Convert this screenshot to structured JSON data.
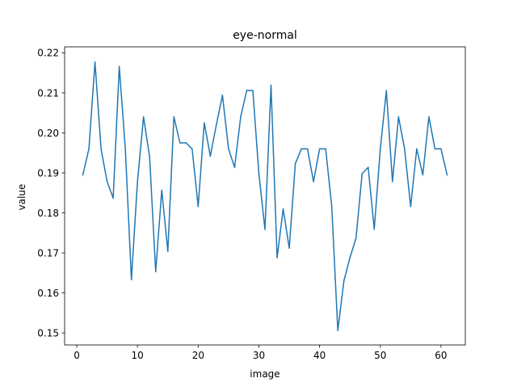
{
  "chart_data": {
    "type": "line",
    "title": "eye-normal",
    "xlabel": "image",
    "ylabel": "value",
    "xlim": [
      -2,
      64
    ],
    "ylim": [
      0.147,
      0.2215
    ],
    "xticks": [
      0,
      10,
      20,
      30,
      40,
      50,
      60
    ],
    "xtick_labels": [
      "0",
      "10",
      "20",
      "30",
      "40",
      "50",
      "60"
    ],
    "yticks": [
      0.15,
      0.16,
      0.17,
      0.18,
      0.19,
      0.2,
      0.21,
      0.22
    ],
    "ytick_labels": [
      "0.15",
      "0.16",
      "0.17",
      "0.18",
      "0.19",
      "0.20",
      "0.21",
      "0.22"
    ],
    "grid": false,
    "line_color": "#1f77b4",
    "series": [
      {
        "x": [
          1,
          2,
          3,
          4,
          5,
          6,
          7,
          8,
          9,
          10,
          11,
          12,
          13,
          14,
          15,
          16,
          17,
          18,
          19,
          20,
          21,
          22,
          23,
          24,
          25,
          26,
          27,
          28,
          29,
          30,
          31,
          32,
          33,
          34,
          35,
          36,
          37,
          38,
          39,
          40,
          41,
          42,
          43,
          44,
          45,
          46,
          47,
          48,
          49,
          50,
          51,
          52,
          53,
          54,
          55,
          56,
          57,
          58,
          59,
          60,
          61
        ],
        "values": [
          0.1895,
          0.196,
          0.2177,
          0.196,
          0.1878,
          0.1837,
          0.2166,
          0.196,
          0.1633,
          0.1878,
          0.204,
          0.194,
          0.1653,
          0.1857,
          0.1704,
          0.204,
          0.1975,
          0.1975,
          0.196,
          0.1816,
          0.2025,
          0.1942,
          0.2021,
          0.2094,
          0.196,
          0.1914,
          0.204,
          0.2106,
          0.2106,
          0.1898,
          0.1759,
          0.2119,
          0.1688,
          0.181,
          0.1712,
          0.1923,
          0.196,
          0.196,
          0.1878,
          0.196,
          0.196,
          0.1816,
          0.1506,
          0.163,
          0.1688,
          0.1737,
          0.1898,
          0.1914,
          0.1759,
          0.196,
          0.2106,
          0.1878,
          0.204,
          0.196,
          0.1816,
          0.196,
          0.1895,
          0.204,
          0.196,
          0.196,
          0.1895
        ]
      }
    ]
  }
}
